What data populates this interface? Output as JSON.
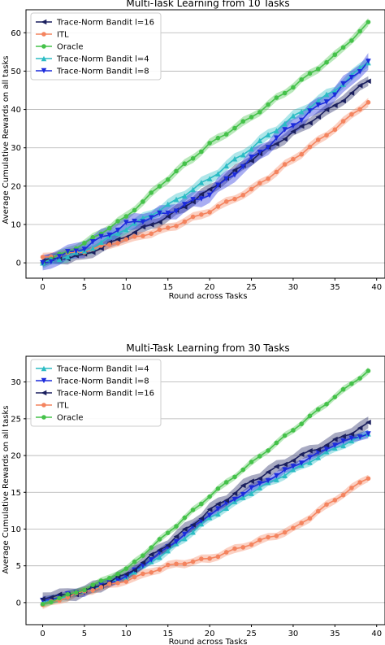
{
  "chart_data": [
    {
      "type": "line",
      "title": "Multi-Task Learning from 10 Tasks",
      "xlabel": "Round across Tasks",
      "ylabel": "Average Cumulative Rewards on all tasks",
      "xlim": [
        -2,
        41
      ],
      "ylim": [
        -4,
        66
      ],
      "xticks": [
        0,
        5,
        10,
        15,
        20,
        25,
        30,
        35,
        40
      ],
      "yticks": [
        0,
        10,
        20,
        30,
        40,
        50,
        60
      ],
      "grid": "horizontal",
      "legend_position": "top-left",
      "series": [
        {
          "name": "Trace-Norm Bandit l=16",
          "color": "#1a1f5e",
          "marker": "triangle-left",
          "band": 1.5,
          "anchors": [
            [
              0,
              0.5
            ],
            [
              5,
              2
            ],
            [
              10,
              7
            ],
            [
              15,
              12
            ],
            [
              20,
              19
            ],
            [
              25,
              27
            ],
            [
              30,
              34
            ],
            [
              35,
              41
            ],
            [
              39,
              47.5
            ]
          ]
        },
        {
          "name": "ITL",
          "color": "#f4845f",
          "marker": "circle",
          "band": 1.2,
          "anchors": [
            [
              0,
              1.5
            ],
            [
              5,
              3
            ],
            [
              10,
              6
            ],
            [
              15,
              9
            ],
            [
              20,
              13.5
            ],
            [
              25,
              19
            ],
            [
              30,
              27
            ],
            [
              35,
              35
            ],
            [
              39,
              42
            ]
          ]
        },
        {
          "name": "Oracle",
          "color": "#45c24a",
          "marker": "circle",
          "band": 1.2,
          "anchors": [
            [
              0,
              0
            ],
            [
              5,
              5
            ],
            [
              10,
              12
            ],
            [
              15,
              22
            ],
            [
              20,
              31
            ],
            [
              25,
              38
            ],
            [
              30,
              46
            ],
            [
              35,
              54
            ],
            [
              39,
              62.5
            ]
          ]
        },
        {
          "name": "Trace-Norm Bandit l=4",
          "color": "#2bbcc4",
          "marker": "triangle-up",
          "band": 1.5,
          "anchors": [
            [
              0,
              0
            ],
            [
              5,
              3
            ],
            [
              10,
              9
            ],
            [
              15,
              15
            ],
            [
              20,
              22
            ],
            [
              25,
              30
            ],
            [
              30,
              38
            ],
            [
              35,
              45
            ],
            [
              39,
              52.5
            ]
          ]
        },
        {
          "name": "Trace-Norm Bandit l=8",
          "color": "#1c2bdc",
          "marker": "triangle-down",
          "band": 2.2,
          "anchors": [
            [
              0,
              0
            ],
            [
              5,
              4
            ],
            [
              10,
              10
            ],
            [
              15,
              13
            ],
            [
              20,
              18
            ],
            [
              25,
              27
            ],
            [
              30,
              36
            ],
            [
              35,
              44
            ],
            [
              39,
              52.5
            ]
          ]
        }
      ]
    },
    {
      "type": "line",
      "title": "Multi-Task Learning from 30 Tasks",
      "xlabel": "Round across Tasks",
      "ylabel": "Average Cumulative Rewards on all tasks",
      "xlim": [
        -2,
        41
      ],
      "ylim": [
        -3,
        33.5
      ],
      "xticks": [
        0,
        5,
        10,
        15,
        20,
        25,
        30,
        35,
        40
      ],
      "yticks": [
        0,
        5,
        10,
        15,
        20,
        25,
        30
      ],
      "grid": "horizontal",
      "legend_position": "top-left",
      "series": [
        {
          "name": "Trace-Norm Bandit l=4",
          "color": "#2bbcc4",
          "marker": "triangle-up",
          "band": 0.6,
          "anchors": [
            [
              0,
              0
            ],
            [
              5,
              1.5
            ],
            [
              10,
              3.5
            ],
            [
              15,
              7
            ],
            [
              20,
              11.5
            ],
            [
              25,
              15
            ],
            [
              30,
              18
            ],
            [
              35,
              21
            ],
            [
              39,
              23
            ]
          ]
        },
        {
          "name": "Trace-Norm Bandit l=8",
          "color": "#1c2bdc",
          "marker": "triangle-down",
          "band": 0.6,
          "anchors": [
            [
              0,
              0.3
            ],
            [
              5,
              1.5
            ],
            [
              10,
              3.5
            ],
            [
              15,
              7.5
            ],
            [
              20,
              12
            ],
            [
              25,
              15.5
            ],
            [
              30,
              18.5
            ],
            [
              35,
              21.5
            ],
            [
              39,
              23
            ]
          ]
        },
        {
          "name": "Trace-Norm Bandit l=16",
          "color": "#1a1f5e",
          "marker": "triangle-left",
          "band": 0.9,
          "anchors": [
            [
              0,
              0.5
            ],
            [
              5,
              1.5
            ],
            [
              10,
              3.8
            ],
            [
              15,
              8
            ],
            [
              20,
              12.5
            ],
            [
              25,
              16.5
            ],
            [
              30,
              19.5
            ],
            [
              35,
              22
            ],
            [
              39,
              24.3
            ]
          ]
        },
        {
          "name": "ITL",
          "color": "#f4845f",
          "marker": "circle",
          "band": 0.6,
          "anchors": [
            [
              0,
              -0.3
            ],
            [
              5,
              1.5
            ],
            [
              10,
              3
            ],
            [
              15,
              5
            ],
            [
              20,
              6
            ],
            [
              25,
              8
            ],
            [
              30,
              10
            ],
            [
              35,
              14
            ],
            [
              39,
              17
            ]
          ]
        },
        {
          "name": "Oracle",
          "color": "#45c24a",
          "marker": "circle",
          "band": 0.5,
          "anchors": [
            [
              0,
              -0.2
            ],
            [
              5,
              1.8
            ],
            [
              10,
              4.5
            ],
            [
              15,
              9.5
            ],
            [
              20,
              14.5
            ],
            [
              25,
              19
            ],
            [
              30,
              23.5
            ],
            [
              35,
              28
            ],
            [
              39,
              31.5
            ]
          ]
        }
      ]
    }
  ]
}
